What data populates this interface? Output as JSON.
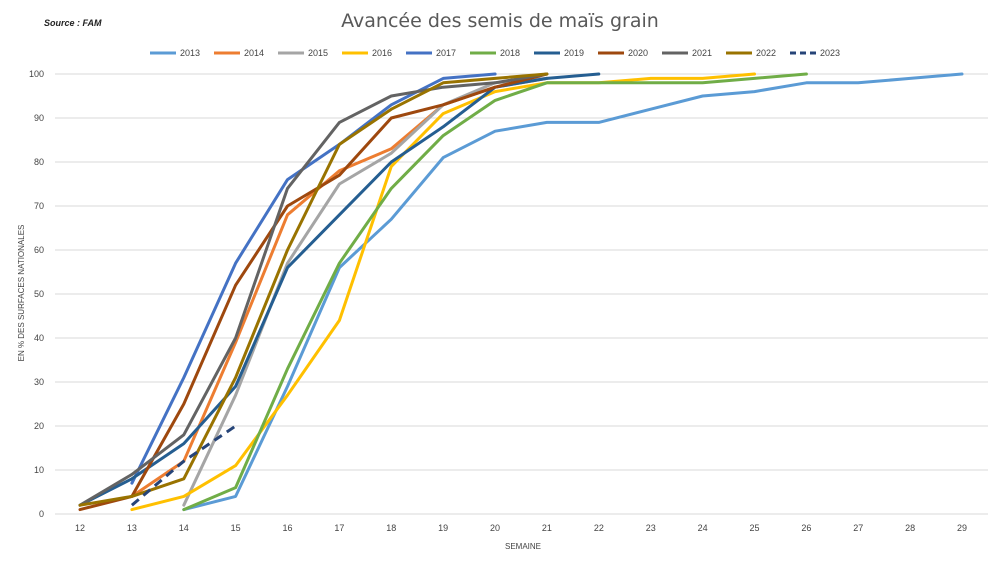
{
  "chart_data": {
    "type": "line",
    "title": "Avancée des semis de maïs grain",
    "source": "Source : FAM",
    "xlabel": "SEMAINE",
    "ylabel": "EN % DES SURFACES NATIONALES",
    "xlim": [
      12,
      29
    ],
    "ylim": [
      0,
      100
    ],
    "yticks": [
      0,
      10,
      20,
      30,
      40,
      50,
      60,
      70,
      80,
      90,
      100
    ],
    "xticks": [
      12,
      13,
      14,
      15,
      16,
      17,
      18,
      19,
      20,
      21,
      22,
      23,
      24,
      25,
      26,
      27,
      28,
      29
    ],
    "grid": "horizontal",
    "legend": "top",
    "series": [
      {
        "name": "2013",
        "color": "#5b9bd5",
        "dash": false,
        "points": [
          [
            14,
            1
          ],
          [
            15,
            4
          ],
          [
            16,
            29
          ],
          [
            17,
            56
          ],
          [
            18,
            67
          ],
          [
            19,
            81
          ],
          [
            20,
            87
          ],
          [
            21,
            89
          ],
          [
            22,
            89
          ],
          [
            23,
            92
          ],
          [
            24,
            95
          ],
          [
            25,
            96
          ],
          [
            26,
            98
          ],
          [
            27,
            98
          ],
          [
            28,
            99
          ],
          [
            29,
            100
          ]
        ]
      },
      {
        "name": "2014",
        "color": "#ed7d31",
        "dash": false,
        "points": [
          [
            13,
            4
          ],
          [
            14,
            12
          ],
          [
            15,
            39
          ],
          [
            16,
            68
          ],
          [
            17,
            78
          ],
          [
            18,
            83
          ],
          [
            19,
            93
          ],
          [
            20,
            97
          ],
          [
            21,
            99
          ]
        ]
      },
      {
        "name": "2015",
        "color": "#a5a5a5",
        "dash": false,
        "points": [
          [
            14,
            2
          ],
          [
            15,
            27
          ],
          [
            16,
            57
          ],
          [
            17,
            75
          ],
          [
            18,
            82
          ],
          [
            19,
            93
          ],
          [
            20,
            98
          ],
          [
            21,
            99
          ]
        ]
      },
      {
        "name": "2016",
        "color": "#ffc000",
        "dash": false,
        "points": [
          [
            13,
            1
          ],
          [
            14,
            4
          ],
          [
            15,
            11
          ],
          [
            16,
            27
          ],
          [
            17,
            44
          ],
          [
            18,
            79
          ],
          [
            19,
            91
          ],
          [
            20,
            96
          ],
          [
            21,
            98
          ],
          [
            22,
            98
          ],
          [
            23,
            99
          ],
          [
            24,
            99
          ],
          [
            25,
            100
          ]
        ]
      },
      {
        "name": "2017",
        "color": "#4472c4",
        "dash": false,
        "points": [
          [
            13,
            7
          ],
          [
            14,
            31
          ],
          [
            15,
            57
          ],
          [
            16,
            76
          ],
          [
            17,
            84
          ],
          [
            18,
            93
          ],
          [
            19,
            99
          ],
          [
            20,
            100
          ]
        ]
      },
      {
        "name": "2018",
        "color": "#70ad47",
        "dash": false,
        "points": [
          [
            14,
            1
          ],
          [
            15,
            6
          ],
          [
            16,
            33
          ],
          [
            17,
            57
          ],
          [
            18,
            74
          ],
          [
            19,
            86
          ],
          [
            20,
            94
          ],
          [
            21,
            98
          ],
          [
            22,
            98
          ],
          [
            23,
            98
          ],
          [
            24,
            98
          ],
          [
            25,
            99
          ],
          [
            26,
            100
          ]
        ]
      },
      {
        "name": "2019",
        "color": "#255e91",
        "dash": false,
        "points": [
          [
            12,
            2
          ],
          [
            13,
            8
          ],
          [
            14,
            16
          ],
          [
            15,
            29
          ],
          [
            16,
            56
          ],
          [
            17,
            68
          ],
          [
            18,
            80
          ],
          [
            19,
            88
          ],
          [
            20,
            97
          ],
          [
            21,
            99
          ],
          [
            22,
            100
          ]
        ]
      },
      {
        "name": "2020",
        "color": "#9e480e",
        "dash": false,
        "points": [
          [
            12,
            1
          ],
          [
            13,
            4
          ],
          [
            14,
            25
          ],
          [
            15,
            52
          ],
          [
            16,
            70
          ],
          [
            17,
            77
          ],
          [
            18,
            90
          ],
          [
            19,
            93
          ],
          [
            20,
            97
          ],
          [
            21,
            100
          ]
        ]
      },
      {
        "name": "2021",
        "color": "#636363",
        "dash": false,
        "points": [
          [
            12,
            2
          ],
          [
            13,
            9
          ],
          [
            14,
            18
          ],
          [
            15,
            40
          ],
          [
            16,
            74
          ],
          [
            17,
            89
          ],
          [
            18,
            95
          ],
          [
            19,
            97
          ],
          [
            20,
            98
          ],
          [
            21,
            100
          ]
        ]
      },
      {
        "name": "2022",
        "color": "#997300",
        "dash": false,
        "points": [
          [
            12,
            2
          ],
          [
            13,
            4
          ],
          [
            14,
            8
          ],
          [
            15,
            31
          ],
          [
            16,
            60
          ],
          [
            17,
            84
          ],
          [
            18,
            92
          ],
          [
            19,
            98
          ],
          [
            20,
            99
          ],
          [
            21,
            100
          ]
        ]
      },
      {
        "name": "2023",
        "color": "#264478",
        "dash": true,
        "points": [
          [
            13,
            2
          ],
          [
            14,
            12
          ],
          [
            15,
            20
          ]
        ]
      }
    ]
  }
}
